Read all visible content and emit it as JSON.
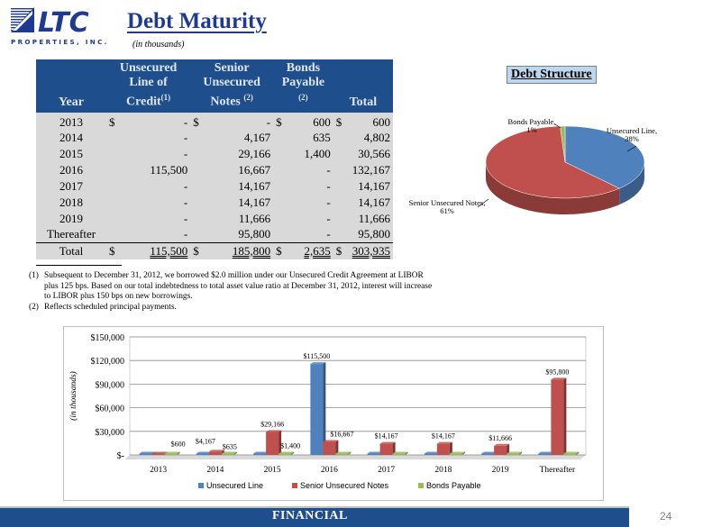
{
  "logo": {
    "text": "LTC",
    "tagline": "PROPERTIES, INC.",
    "brand_color": "#1f3a93"
  },
  "header": {
    "title": "Debt Maturity",
    "subtitle": "(in thousands)"
  },
  "table": {
    "headers": {
      "year": "Year",
      "line_credit": "Unsecured Line of Credit",
      "line_credit_note": "(1)",
      "notes": "Senior Unsecured Notes",
      "notes_note": "(2)",
      "bonds": "Bonds Payable",
      "bonds_note": "(2)",
      "total": "Total"
    },
    "rows": [
      {
        "year": "2013",
        "line": "-",
        "notes": "-",
        "bonds": "600",
        "total": "600",
        "dollar": "$"
      },
      {
        "year": "2014",
        "line": "-",
        "notes": "4,167",
        "bonds": "635",
        "total": "4,802",
        "dollar": ""
      },
      {
        "year": "2015",
        "line": "-",
        "notes": "29,166",
        "bonds": "1,400",
        "total": "30,566",
        "dollar": ""
      },
      {
        "year": "2016",
        "line": "115,500",
        "notes": "16,667",
        "bonds": "-",
        "total": "132,167",
        "dollar": ""
      },
      {
        "year": "2017",
        "line": "-",
        "notes": "14,167",
        "bonds": "-",
        "total": "14,167",
        "dollar": ""
      },
      {
        "year": "2018",
        "line": "-",
        "notes": "14,167",
        "bonds": "-",
        "total": "14,167",
        "dollar": ""
      },
      {
        "year": "2019",
        "line": "-",
        "notes": "11,666",
        "bonds": "-",
        "total": "11,666",
        "dollar": ""
      },
      {
        "year": "Thereafter",
        "line": "-",
        "notes": "95,800",
        "bonds": "-",
        "total": "95,800",
        "dollar": ""
      }
    ],
    "total_row": {
      "year": "Total",
      "line": "115,500",
      "notes": "185,800",
      "bonds": "2,635",
      "total": "303,935",
      "dollar": "$"
    }
  },
  "footnotes": [
    {
      "num": "(1)",
      "text": "Subsequent to December 31, 2012, we borrowed $2.0 million under our Unsecured Credit Agreement at LIBOR plus 125 bps.  Based on our total indebtedness to total asset value ratio at December 31, 2012, interest will increase to LIBOR plus 150 bps on new borrowings."
    },
    {
      "num": "(2)",
      "text": "Reflects scheduled principal payments."
    }
  ],
  "chart_data": [
    {
      "type": "pie",
      "title": "Debt Structure",
      "slices": [
        {
          "label": "Unsecured Line, 38%",
          "value": 38,
          "color": "#4f81bd"
        },
        {
          "label": "Senior Unsecured Notes, 61%",
          "value": 61,
          "color": "#c0504d"
        },
        {
          "label": "Bonds Payable, 1%",
          "value": 1,
          "color": "#9bbb59"
        }
      ]
    },
    {
      "type": "bar",
      "categories": [
        "2013",
        "2014",
        "2015",
        "2016",
        "2017",
        "2018",
        "2019",
        "Thereafter"
      ],
      "series": [
        {
          "name": "Unsecured Line",
          "color": "#4f81bd",
          "values": [
            0,
            0,
            0,
            115500,
            0,
            0,
            0,
            0
          ],
          "labels": [
            "",
            "",
            "",
            "$115,500",
            "",
            "",
            "",
            ""
          ]
        },
        {
          "name": "Senior Unsecured Notes",
          "color": "#c0504d",
          "values": [
            0,
            4167,
            29166,
            16667,
            14167,
            14167,
            11666,
            95800
          ],
          "labels": [
            "",
            "$4,167",
            "$29,166",
            "$16,667",
            "$14,167",
            "$14,167",
            "$11,666",
            "$95,800"
          ]
        },
        {
          "name": "Bonds Payable",
          "color": "#9bbb59",
          "values": [
            600,
            635,
            1400,
            0,
            0,
            0,
            0,
            0
          ],
          "labels": [
            "$600",
            "$635",
            "$1,400",
            "",
            "",
            "",
            "",
            ""
          ]
        }
      ],
      "ylabel": "(in thousands)",
      "ylim": [
        0,
        150000
      ],
      "yticks": [
        0,
        30000,
        60000,
        90000,
        120000,
        150000
      ],
      "ytick_labels": [
        "$-",
        "$30,000",
        "$60,000",
        "$90,000",
        "$120,000",
        "$150,000"
      ],
      "grid": true,
      "legend": "bottom"
    }
  ],
  "footer": {
    "label": "FINANCIAL",
    "page": "24",
    "color": "#1f4e8d"
  }
}
